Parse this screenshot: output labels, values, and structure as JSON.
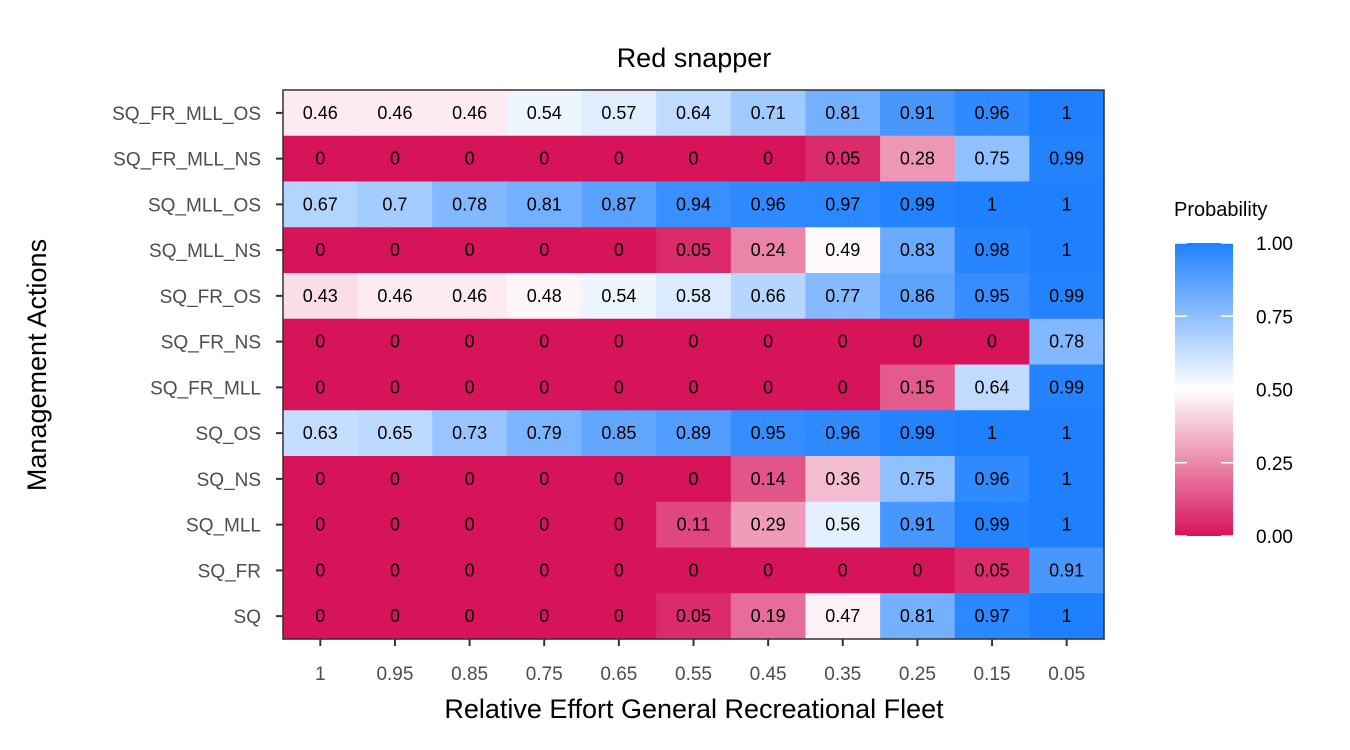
{
  "chart_data": {
    "type": "heatmap",
    "title": "Red snapper",
    "xlabel": "Relative Effort General Recreational Fleet",
    "ylabel": "Management Actions",
    "x_categories": [
      "1",
      "0.95",
      "0.85",
      "0.75",
      "0.65",
      "0.55",
      "0.45",
      "0.35",
      "0.25",
      "0.15",
      "0.05"
    ],
    "y_categories": [
      "SQ_FR_MLL_OS",
      "SQ_FR_MLL_NS",
      "SQ_MLL_OS",
      "SQ_MLL_NS",
      "SQ_FR_OS",
      "SQ_FR_NS",
      "SQ_FR_MLL",
      "SQ_OS",
      "SQ_NS",
      "SQ_MLL",
      "SQ_FR",
      "SQ"
    ],
    "values": [
      [
        0.46,
        0.46,
        0.46,
        0.54,
        0.57,
        0.64,
        0.71,
        0.81,
        0.91,
        0.96,
        1
      ],
      [
        0,
        0,
        0,
        0,
        0,
        0,
        0,
        0.05,
        0.28,
        0.75,
        0.99
      ],
      [
        0.67,
        0.7,
        0.78,
        0.81,
        0.87,
        0.94,
        0.96,
        0.97,
        0.99,
        1,
        1
      ],
      [
        0,
        0,
        0,
        0,
        0,
        0.05,
        0.24,
        0.49,
        0.83,
        0.98,
        1
      ],
      [
        0.43,
        0.46,
        0.46,
        0.48,
        0.54,
        0.58,
        0.66,
        0.77,
        0.86,
        0.95,
        0.99
      ],
      [
        0,
        0,
        0,
        0,
        0,
        0,
        0,
        0,
        0,
        0,
        0.78
      ],
      [
        0,
        0,
        0,
        0,
        0,
        0,
        0,
        0,
        0.15,
        0.64,
        0.99
      ],
      [
        0.63,
        0.65,
        0.73,
        0.79,
        0.85,
        0.89,
        0.95,
        0.96,
        0.99,
        1,
        1
      ],
      [
        0,
        0,
        0,
        0,
        0,
        0,
        0.14,
        0.36,
        0.75,
        0.96,
        1
      ],
      [
        0,
        0,
        0,
        0,
        0,
        0.11,
        0.29,
        0.56,
        0.91,
        0.99,
        1
      ],
      [
        0,
        0,
        0,
        0,
        0,
        0,
        0,
        0,
        0,
        0.05,
        0.91
      ],
      [
        0,
        0,
        0,
        0,
        0,
        0.05,
        0.19,
        0.47,
        0.81,
        0.97,
        1
      ]
    ],
    "legend": {
      "title": "Probability",
      "ticks": [
        "1.00",
        "0.75",
        "0.50",
        "0.25",
        "0.00"
      ],
      "range": [
        0,
        1
      ],
      "placement": "right"
    },
    "colors": {
      "low": "#D7135A",
      "mid": "#FFFFFF",
      "high": "#1E80FF",
      "panel_border": "#333333",
      "tick_text": "#4D4D4D"
    }
  }
}
